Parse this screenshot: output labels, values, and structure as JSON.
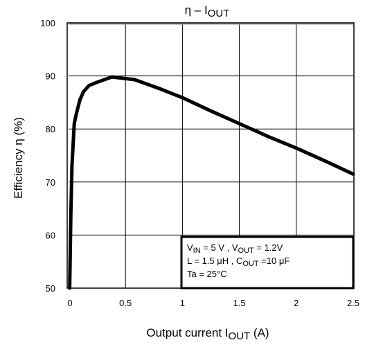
{
  "chart_data": {
    "type": "line",
    "title": {
      "main": "η – I",
      "sub": "OUT"
    },
    "xlabel": {
      "main": "Output current   I",
      "sub": "OUT",
      "unit": "   (A)"
    },
    "ylabel": "Efficiency   η     (%)",
    "xlim": [
      0,
      2.5
    ],
    "ylim": [
      50,
      100
    ],
    "x_ticks": [
      "0",
      "0.5",
      "1",
      "1.5",
      "2",
      "2.5"
    ],
    "y_ticks": [
      "50",
      "60",
      "70",
      "80",
      "90",
      "100"
    ],
    "grid": true,
    "conditions": [
      [
        {
          "t": "V"
        },
        {
          "t": "IN",
          "sub": true
        },
        {
          "t": " = 5 V , V"
        },
        {
          "t": "OUT",
          "sub": true
        },
        {
          "t": " = 1.2V"
        }
      ],
      [
        {
          "t": "L = 1.5 μH , C"
        },
        {
          "t": "OUT",
          "sub": true
        },
        {
          "t": " =10 μF"
        }
      ],
      [
        {
          "t": "Ta = 25°C"
        }
      ]
    ],
    "series": [
      {
        "x": [
          0.01,
          0.02,
          0.03,
          0.05,
          0.07,
          0.1,
          0.13,
          0.18,
          0.25,
          0.38,
          0.58,
          0.8,
          1.0,
          1.25,
          1.5,
          1.75,
          2.0,
          2.25,
          2.5
        ],
        "y": [
          50,
          64,
          73,
          81,
          83,
          85.5,
          87,
          88.2,
          88.8,
          89.8,
          89.3,
          87.6,
          85.9,
          83.4,
          81.0,
          78.6,
          76.4,
          74.0,
          71.5
        ]
      }
    ]
  }
}
